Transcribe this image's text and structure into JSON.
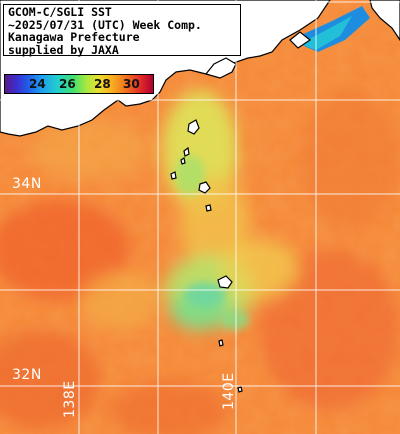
{
  "title_lines": [
    "GCOM-C/SGLI SST",
    "~2025/07/31 (UTC) Week Comp.",
    "Kanagawa Prefecture",
    "supplied by JAXA"
  ],
  "colorbar": {
    "ticks": [
      "24",
      "26",
      "28",
      "30"
    ],
    "unit": ""
  },
  "grid": {
    "latitudes": [
      "34N",
      "32N"
    ],
    "longitudes": [
      "138E",
      "140E"
    ]
  },
  "colors": {
    "land": "#ffffff",
    "coast": "#000000",
    "grid": "#ffffff",
    "ocean_base": "#f58a3a",
    "cool_water": "#c8e46a",
    "warm_water": "#ef5e2a"
  }
}
